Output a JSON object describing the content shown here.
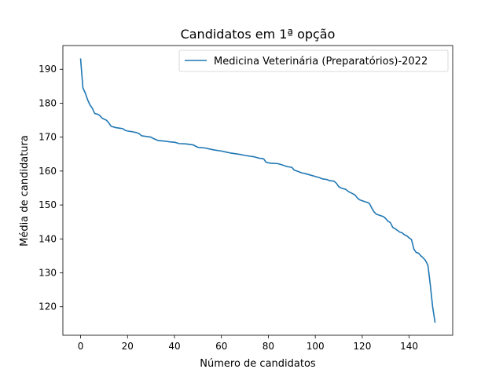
{
  "chart_data": {
    "type": "line",
    "title": "Candidatos em 1ª opção",
    "xlabel": "Número de candidatos",
    "ylabel": "Média de candidatura",
    "xlim": [
      -7.55,
      158.55
    ],
    "ylim": [
      111.6,
      197.0
    ],
    "x_ticks": [
      0,
      20,
      40,
      60,
      80,
      100,
      120,
      140
    ],
    "y_ticks": [
      120,
      130,
      140,
      150,
      160,
      170,
      180,
      190
    ],
    "grid": false,
    "legend_position": "top-right",
    "series": [
      {
        "name": "Medicina Veterinária (Preparatórios)-2022",
        "color": "#1f77b4",
        "points": [
          [
            0,
            193.0
          ],
          [
            1,
            184.5
          ],
          [
            2,
            183.0
          ],
          [
            3,
            181.0
          ],
          [
            4,
            179.5
          ],
          [
            5,
            178.5
          ],
          [
            6,
            177.0
          ],
          [
            7,
            176.8
          ],
          [
            8,
            176.5
          ],
          [
            9,
            175.7
          ],
          [
            10,
            175.3
          ],
          [
            11,
            175.0
          ],
          [
            12,
            174.2
          ],
          [
            13,
            173.2
          ],
          [
            14,
            173.0
          ],
          [
            15,
            172.8
          ],
          [
            17,
            172.6
          ],
          [
            18,
            172.5
          ],
          [
            19,
            172.0
          ],
          [
            20,
            171.8
          ],
          [
            22,
            171.6
          ],
          [
            24,
            171.3
          ],
          [
            25,
            171.0
          ],
          [
            26,
            170.4
          ],
          [
            28,
            170.2
          ],
          [
            30,
            170.0
          ],
          [
            31,
            169.6
          ],
          [
            33,
            169.0
          ],
          [
            36,
            168.8
          ],
          [
            38,
            168.6
          ],
          [
            40,
            168.5
          ],
          [
            42,
            168.1
          ],
          [
            45,
            168.0
          ],
          [
            48,
            167.7
          ],
          [
            50,
            167.0
          ],
          [
            53,
            166.8
          ],
          [
            55,
            166.5
          ],
          [
            57,
            166.2
          ],
          [
            60,
            165.9
          ],
          [
            62,
            165.6
          ],
          [
            64,
            165.3
          ],
          [
            66,
            165.1
          ],
          [
            68,
            164.9
          ],
          [
            70,
            164.6
          ],
          [
            72,
            164.4
          ],
          [
            74,
            164.2
          ],
          [
            76,
            163.8
          ],
          [
            78,
            163.6
          ],
          [
            79,
            162.6
          ],
          [
            81,
            162.3
          ],
          [
            84,
            162.2
          ],
          [
            86,
            161.8
          ],
          [
            88,
            161.3
          ],
          [
            90,
            161.1
          ],
          [
            91,
            160.3
          ],
          [
            93,
            159.8
          ],
          [
            94,
            159.5
          ],
          [
            96,
            159.2
          ],
          [
            98,
            158.8
          ],
          [
            100,
            158.4
          ],
          [
            102,
            158.0
          ],
          [
            103,
            157.7
          ],
          [
            105,
            157.5
          ],
          [
            106,
            157.2
          ],
          [
            108,
            157.0
          ],
          [
            109,
            156.4
          ],
          [
            110,
            155.4
          ],
          [
            111,
            155.0
          ],
          [
            113,
            154.6
          ],
          [
            114,
            154.0
          ],
          [
            116,
            153.3
          ],
          [
            117,
            152.9
          ],
          [
            118,
            152.0
          ],
          [
            119,
            151.5
          ],
          [
            121,
            151.0
          ],
          [
            122,
            150.8
          ],
          [
            123,
            150.5
          ],
          [
            124,
            149.2
          ],
          [
            125,
            148.0
          ],
          [
            126,
            147.3
          ],
          [
            128,
            146.8
          ],
          [
            129,
            146.6
          ],
          [
            130,
            146.0
          ],
          [
            131,
            145.2
          ],
          [
            132,
            144.8
          ],
          [
            133,
            143.4
          ],
          [
            134,
            143.0
          ],
          [
            135,
            142.5
          ],
          [
            136,
            142.0
          ],
          [
            137,
            141.8
          ],
          [
            138,
            141.2
          ],
          [
            139,
            140.9
          ],
          [
            140,
            140.3
          ],
          [
            141,
            139.8
          ],
          [
            142,
            137.0
          ],
          [
            143,
            136.0
          ],
          [
            144,
            135.8
          ],
          [
            145,
            135.0
          ],
          [
            146,
            134.4
          ],
          [
            147,
            133.6
          ],
          [
            148,
            132.2
          ],
          [
            149,
            126.5
          ],
          [
            150,
            120.0
          ],
          [
            151,
            115.5
          ]
        ]
      }
    ]
  }
}
